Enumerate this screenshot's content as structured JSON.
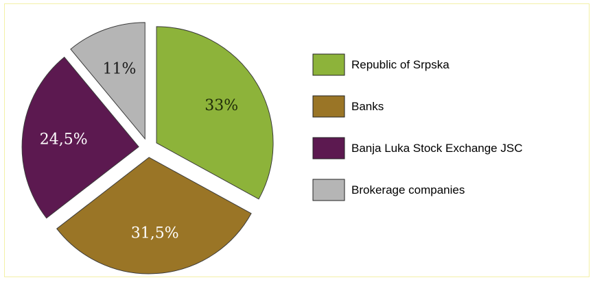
{
  "chart_data": {
    "type": "pie",
    "title": "",
    "exploded": true,
    "start_angle": "12 o'clock, clockwise",
    "legend_position": "right",
    "slices": [
      {
        "name": "Republic of Srpska",
        "value": 33,
        "label": "33%",
        "color": "#8db33a",
        "label_color": "#1e2a08"
      },
      {
        "name": "Banks",
        "value": 31.5,
        "label": "31,5%",
        "color": "#9a7526",
        "label_color": "#ffffff"
      },
      {
        "name": "Banja Luka Stock Exchange JSC",
        "value": 24.5,
        "label": "24,5%",
        "color": "#5c1950",
        "label_color": "#ffffff"
      },
      {
        "name": "Brokerage companies",
        "value": 11,
        "label": "11%",
        "color": "#b5b5b5",
        "label_color": "#1a1a1a"
      }
    ]
  }
}
